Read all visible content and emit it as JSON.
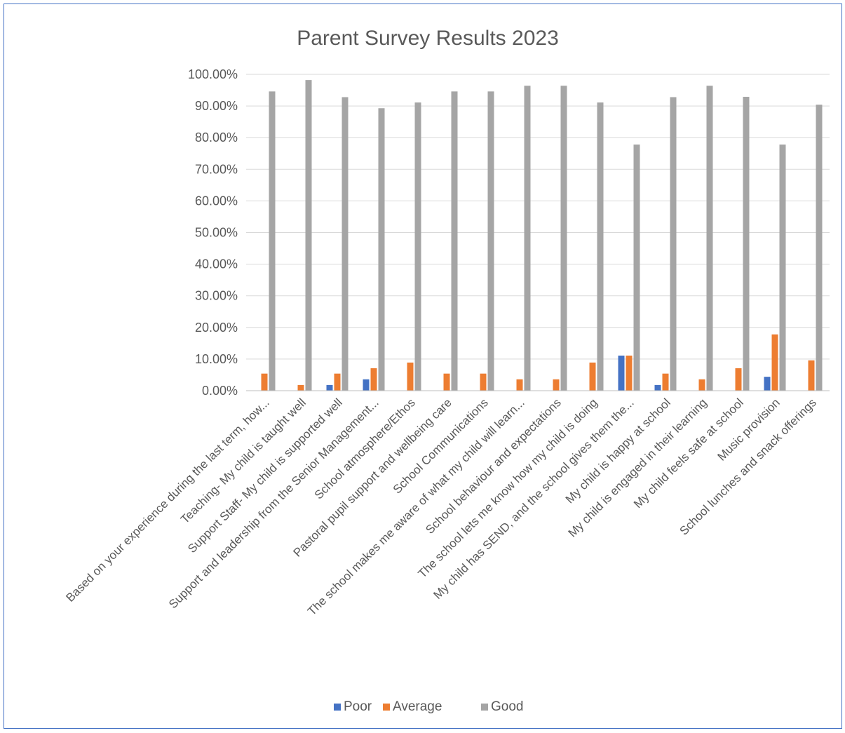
{
  "chart_data": {
    "type": "bar",
    "title": "Parent Survey Results 2023",
    "xlabel": "",
    "ylabel": "",
    "ylim": [
      0,
      100
    ],
    "y_tick_step": 10,
    "y_tick_format": "0.00%",
    "grid": true,
    "legend_position": "bottom",
    "categories": [
      "Based on your experience during the last term, how...",
      "Teaching- My child is taught well",
      "Support Staff- My child is supported well",
      "Support and leadership from the Senior Management...",
      "School atmosphere/Ethos",
      "Pastoral pupil support and wellbeing care",
      "School Communications",
      "The school makes me aware of what my child will learn...",
      "School behaviour and expectations",
      "The school lets me know how my child is doing",
      "My child has SEND, and the school gives them the...",
      "My child is happy at school",
      "My child is engaged in their learning",
      "My child feels safe at school",
      "Music provision",
      "School lunches and snack offerings"
    ],
    "series": [
      {
        "name": "Poor",
        "color": "#4472c4",
        "values": [
          0,
          0,
          1.8,
          3.6,
          0,
          0,
          0,
          0,
          0,
          0,
          11.1,
          1.8,
          0,
          0,
          4.4,
          0
        ]
      },
      {
        "name": "Average",
        "color": "#ed7d31",
        "values": [
          5.4,
          1.8,
          5.4,
          7.1,
          8.9,
          5.4,
          5.4,
          3.6,
          3.6,
          8.9,
          11.1,
          5.4,
          3.6,
          7.1,
          17.8,
          9.6
        ]
      },
      {
        "name": "Good",
        "color": "#a5a5a5",
        "values": [
          94.6,
          98.2,
          92.8,
          89.3,
          91.1,
          94.6,
          94.6,
          96.4,
          96.4,
          91.1,
          77.8,
          92.8,
          96.4,
          92.9,
          77.8,
          90.4
        ]
      }
    ]
  }
}
